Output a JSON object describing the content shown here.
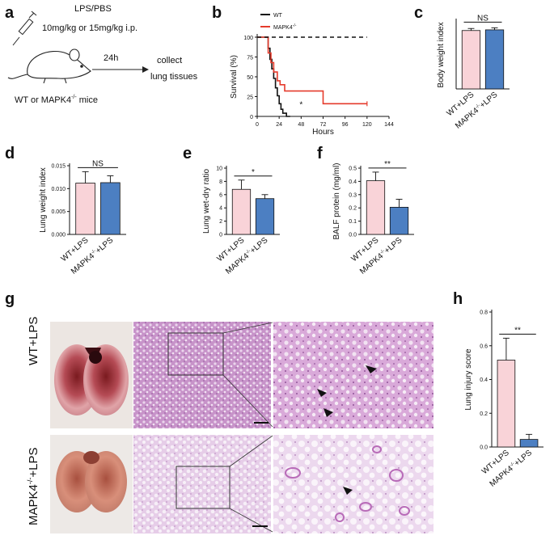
{
  "panel_labels": {
    "a": "a",
    "b": "b",
    "c": "c",
    "d": "d",
    "e": "e",
    "f": "f",
    "g": "g",
    "h": "h"
  },
  "schematic": {
    "treatment": "LPS/PBS",
    "dose": "10mg/kg or 15mg/kg i.p.",
    "time": "24h",
    "collect_1": "collect",
    "collect_2": "lung tissues",
    "mice": "WT or MAPK4",
    "mice_sup": "-/-",
    "mice_tail": " mice"
  },
  "groups": {
    "wt": "WT+LPS",
    "ko_pre": "MAPK4",
    "ko_sup": "-/-",
    "ko_post": "+LPS"
  },
  "colors": {
    "wt_bar": "#f9d3d8",
    "ko_bar": "#4c7fc2",
    "wt_line": "#111111",
    "ko_line": "#e53b2c"
  },
  "chart_data": [
    {
      "panel": "b",
      "type": "line",
      "subtype": "kaplan-meier",
      "xlabel": "Hours",
      "ylabel": "Survival (%)",
      "xlim": [
        0,
        144
      ],
      "ylim": [
        0,
        100
      ],
      "xticks": [
        "0",
        "24",
        "48",
        "72",
        "96",
        "120",
        "144"
      ],
      "yticks": [
        "0",
        "25",
        "50",
        "75",
        "100"
      ],
      "annotation": "*",
      "series": [
        {
          "name": "WT",
          "x": [
            0,
            12,
            12,
            14,
            14,
            16,
            16,
            18,
            18,
            20,
            20,
            22,
            22,
            24,
            24,
            26,
            26,
            28,
            28,
            32,
            32,
            36
          ],
          "y": [
            100,
            100,
            86,
            86,
            72,
            72,
            60,
            60,
            48,
            48,
            36,
            36,
            26,
            26,
            16,
            16,
            9,
            9,
            4,
            4,
            0,
            0
          ]
        },
        {
          "name": "MAPK4",
          "name_sup": "-/-",
          "x": [
            0,
            12,
            12,
            15,
            15,
            18,
            18,
            22,
            22,
            25,
            25,
            30,
            30,
            72,
            72,
            120
          ],
          "y": [
            100,
            100,
            80,
            80,
            68,
            68,
            56,
            56,
            45,
            45,
            40,
            40,
            32,
            32,
            16,
            16
          ]
        },
        {
          "name": "PBS",
          "style": "dashed",
          "x": [
            0,
            120
          ],
          "y": [
            100,
            100
          ]
        }
      ]
    },
    {
      "panel": "c",
      "type": "bar",
      "ylabel": "Body weight index",
      "ylim": [
        0,
        1.0
      ],
      "categories": [
        "WT+LPS",
        "MAPK4-/-+LPS"
      ],
      "values": [
        0.86,
        0.87
      ],
      "errors": [
        0.03,
        0.03
      ],
      "significance": "NS"
    },
    {
      "panel": "d",
      "type": "bar",
      "ylabel": "Lung weight index",
      "ylim": [
        0,
        0.015
      ],
      "yticks": [
        "0.000",
        "0.005",
        "0.010",
        "0.015"
      ],
      "categories": [
        "WT+LPS",
        "MAPK4-/-+LPS"
      ],
      "values": [
        0.0112,
        0.0113
      ],
      "errors": [
        0.0025,
        0.0015
      ],
      "significance": "NS"
    },
    {
      "panel": "e",
      "type": "bar",
      "ylabel": "Lung wet-dry ratio",
      "ylim": [
        0,
        10
      ],
      "yticks": [
        "0",
        "2",
        "4",
        "6",
        "8",
        "10"
      ],
      "categories": [
        "WT+LPS",
        "MAPK4-/-+LPS"
      ],
      "values": [
        6.8,
        5.4
      ],
      "errors": [
        1.4,
        0.6
      ],
      "significance": "*"
    },
    {
      "panel": "f",
      "type": "bar",
      "ylabel": "BALF protein (mg/ml)",
      "ylim": [
        0,
        0.5
      ],
      "yticks": [
        "0.0",
        "0.1",
        "0.2",
        "0.3",
        "0.4",
        "0.5"
      ],
      "categories": [
        "WT+LPS",
        "MAPK4-/-+LPS"
      ],
      "values": [
        0.405,
        0.205
      ],
      "errors": [
        0.065,
        0.06
      ],
      "significance": "**"
    },
    {
      "panel": "h",
      "type": "bar",
      "ylabel": "Lung injury score",
      "ylim": [
        0,
        0.8
      ],
      "yticks": [
        "0.0",
        "0.2",
        "0.4",
        "0.6",
        "0.8"
      ],
      "categories": [
        "WT+LPS",
        "MAPK4-/-+LPS"
      ],
      "values": [
        0.515,
        0.045
      ],
      "errors": [
        0.13,
        0.03
      ],
      "significance": "**"
    }
  ],
  "histology": {
    "row_labels": [
      "WT+LPS",
      "MAPK4-/-+LPS"
    ],
    "row_label_wt": "WT+LPS",
    "row_label_ko_pre": "MAPK4",
    "row_label_ko_sup": "-/-",
    "row_label_ko_post": "+LPS"
  }
}
